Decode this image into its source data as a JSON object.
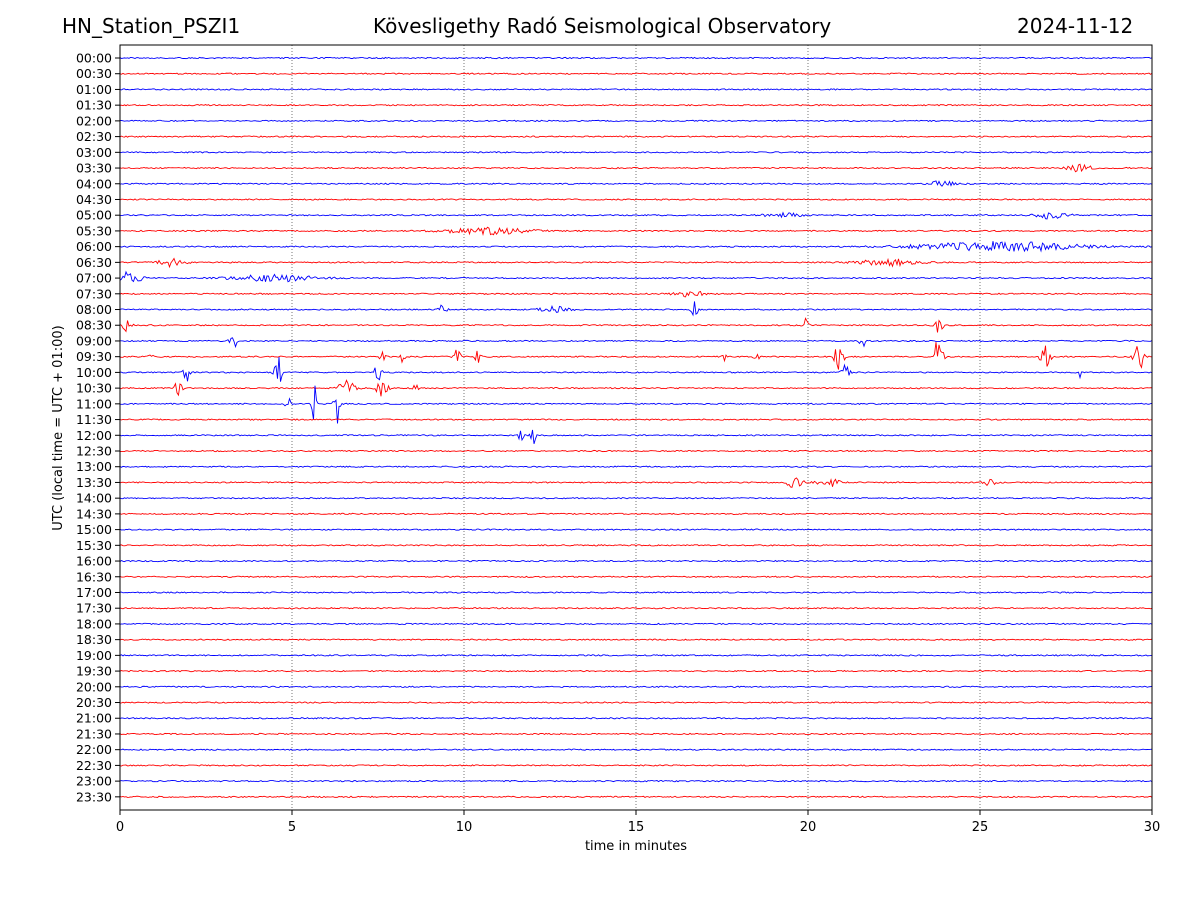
{
  "header": {
    "station": "HN_Station_PSZI1",
    "observatory": "Kövesligethy Radó Seismological Observatory",
    "date": "2024-11-12"
  },
  "chart_data": {
    "type": "line",
    "title": "Kövesligethy Radó Seismological Observatory",
    "xlabel": "time in minutes",
    "ylabel": "UTC (local time = UTC + 01:00)",
    "xlim": [
      0,
      30
    ],
    "xticks": [
      "0",
      "5",
      "10",
      "15",
      "20",
      "25",
      "30"
    ],
    "grid": "vertical dotted at 5-minute intervals",
    "colors": {
      "even_row": "#0000ff",
      "odd_row": "#ff0000"
    },
    "rows": [
      "00:00",
      "00:30",
      "01:00",
      "01:30",
      "02:00",
      "02:30",
      "03:00",
      "03:30",
      "04:00",
      "04:30",
      "05:00",
      "05:30",
      "06:00",
      "06:30",
      "07:00",
      "07:30",
      "08:00",
      "08:30",
      "09:00",
      "09:30",
      "10:00",
      "10:30",
      "11:00",
      "11:30",
      "12:00",
      "12:30",
      "13:00",
      "13:30",
      "14:00",
      "14:30",
      "15:00",
      "15:30",
      "16:00",
      "16:30",
      "17:00",
      "17:30",
      "18:00",
      "18:30",
      "19:00",
      "19:30",
      "20:00",
      "20:30",
      "21:00",
      "21:30",
      "22:00",
      "22:30",
      "23:00",
      "23:30"
    ],
    "events": [
      {
        "row": "03:30",
        "minute": 27.9,
        "amplitude": 0.25,
        "width": 0.6
      },
      {
        "row": "04:00",
        "minute": 23.9,
        "amplitude": 0.2,
        "width": 0.8
      },
      {
        "row": "05:00",
        "minute": 19.3,
        "amplitude": 0.15,
        "width": 1.0
      },
      {
        "row": "05:00",
        "minute": 27.1,
        "amplitude": 0.25,
        "width": 0.8
      },
      {
        "row": "05:30",
        "minute": 10.7,
        "amplitude": 0.25,
        "width": 2.0
      },
      {
        "row": "06:00",
        "minute": 25.5,
        "amplitude": 0.35,
        "width": 4.0
      },
      {
        "row": "06:30",
        "minute": 1.5,
        "amplitude": 0.3,
        "width": 0.6
      },
      {
        "row": "06:30",
        "minute": 22.3,
        "amplitude": 0.25,
        "width": 1.5
      },
      {
        "row": "07:00",
        "minute": 0.3,
        "amplitude": 0.5,
        "width": 0.5
      },
      {
        "row": "07:00",
        "minute": 4.5,
        "amplitude": 0.25,
        "width": 2.0
      },
      {
        "row": "07:30",
        "minute": 16.6,
        "amplitude": 0.2,
        "width": 0.8
      },
      {
        "row": "08:00",
        "minute": 9.4,
        "amplitude": 0.4,
        "width": 0.2
      },
      {
        "row": "08:00",
        "minute": 12.6,
        "amplitude": 0.2,
        "width": 0.8
      },
      {
        "row": "08:00",
        "minute": 16.7,
        "amplitude": 1.0,
        "width": 0.15
      },
      {
        "row": "08:30",
        "minute": 0.2,
        "amplitude": 0.5,
        "width": 0.2
      },
      {
        "row": "08:30",
        "minute": 19.9,
        "amplitude": 0.5,
        "width": 0.15
      },
      {
        "row": "08:30",
        "minute": 23.8,
        "amplitude": 0.8,
        "width": 0.2
      },
      {
        "row": "09:00",
        "minute": 3.3,
        "amplitude": 0.5,
        "width": 0.2
      },
      {
        "row": "09:00",
        "minute": 21.6,
        "amplitude": 0.6,
        "width": 0.15
      },
      {
        "row": "09:30",
        "minute": 0.9,
        "amplitude": 0.35,
        "width": 0.1
      },
      {
        "row": "09:30",
        "minute": 7.6,
        "amplitude": 0.4,
        "width": 0.15
      },
      {
        "row": "09:30",
        "minute": 8.2,
        "amplitude": 0.4,
        "width": 0.15
      },
      {
        "row": "09:30",
        "minute": 9.8,
        "amplitude": 0.55,
        "width": 0.15
      },
      {
        "row": "09:30",
        "minute": 10.4,
        "amplitude": 0.7,
        "width": 0.12
      },
      {
        "row": "09:30",
        "minute": 17.6,
        "amplitude": 0.6,
        "width": 0.12
      },
      {
        "row": "09:30",
        "minute": 18.5,
        "amplitude": 0.5,
        "width": 0.12
      },
      {
        "row": "09:30",
        "minute": 20.9,
        "amplitude": 1.3,
        "width": 0.2
      },
      {
        "row": "09:30",
        "minute": 23.8,
        "amplitude": 1.6,
        "width": 0.2
      },
      {
        "row": "09:30",
        "minute": 26.9,
        "amplitude": 1.6,
        "width": 0.2
      },
      {
        "row": "09:30",
        "minute": 29.6,
        "amplitude": 1.5,
        "width": 0.2
      },
      {
        "row": "10:00",
        "minute": 1.95,
        "amplitude": 0.9,
        "width": 0.15
      },
      {
        "row": "10:00",
        "minute": 4.6,
        "amplitude": 1.6,
        "width": 0.15
      },
      {
        "row": "10:00",
        "minute": 7.5,
        "amplitude": 1.0,
        "width": 0.15
      },
      {
        "row": "10:00",
        "minute": 21.1,
        "amplitude": 0.6,
        "width": 0.2
      },
      {
        "row": "10:00",
        "minute": 27.9,
        "amplitude": 0.4,
        "width": 0.1
      },
      {
        "row": "10:30",
        "minute": 1.7,
        "amplitude": 0.8,
        "width": 0.15
      },
      {
        "row": "10:30",
        "minute": 6.6,
        "amplitude": 0.6,
        "width": 0.4
      },
      {
        "row": "10:30",
        "minute": 7.6,
        "amplitude": 0.55,
        "width": 0.3
      },
      {
        "row": "10:30",
        "minute": 8.6,
        "amplitude": 0.4,
        "width": 0.15
      },
      {
        "row": "11:00",
        "minute": 4.9,
        "amplitude": 0.4,
        "width": 0.15
      },
      {
        "row": "11:00",
        "minute": 5.65,
        "amplitude": 1.6,
        "width": 0.12
      },
      {
        "row": "11:00",
        "minute": 6.3,
        "amplitude": 2.0,
        "width": 0.12
      },
      {
        "row": "12:00",
        "minute": 11.65,
        "amplitude": 1.0,
        "width": 0.12
      },
      {
        "row": "12:00",
        "minute": 12.0,
        "amplitude": 1.0,
        "width": 0.12
      },
      {
        "row": "13:30",
        "minute": 19.6,
        "amplitude": 0.35,
        "width": 0.4
      },
      {
        "row": "13:30",
        "minute": 20.6,
        "amplitude": 0.35,
        "width": 0.5
      },
      {
        "row": "13:30",
        "minute": 25.3,
        "amplitude": 0.3,
        "width": 0.3
      }
    ]
  }
}
